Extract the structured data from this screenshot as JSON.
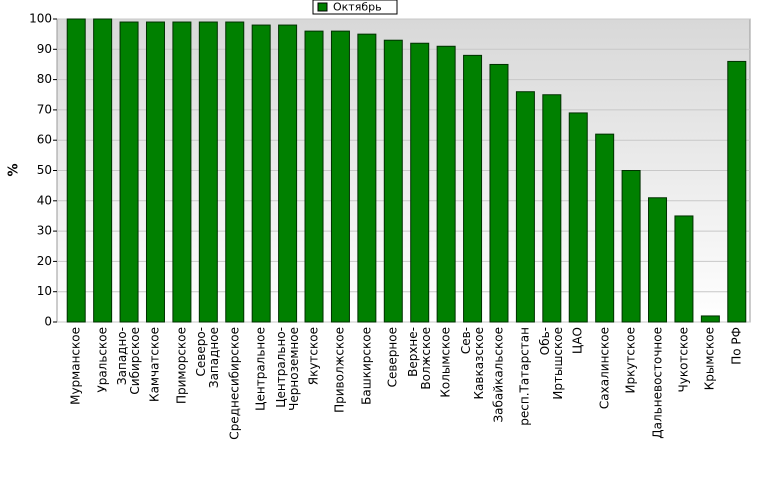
{
  "chart_data": {
    "type": "bar",
    "legend": "Октябрь",
    "ylabel": "%",
    "color": "#008000",
    "categories": [
      "Мурманское",
      "Уральское",
      "Западно-\nСибирское",
      "Камчатское",
      "Приморское",
      "Северо-\nЗападное",
      "Среднесибирское",
      "Центральное",
      "Центрально-\nЧерноземное",
      "Якутское",
      "Приволжское",
      "Башкирское",
      "Северное",
      "Верхне-\nВолжское",
      "Колымское",
      "Сев-\nКавказское",
      "Забайкальское",
      "респ.Татарстан",
      "Обь-\nИртышское",
      "ЦАО",
      "Сахалинское",
      "Иркутское",
      "Дальневосточное",
      "Чукотское",
      "Крымское",
      "По РФ"
    ],
    "values": [
      100,
      100,
      99,
      99,
      99,
      99,
      99,
      98,
      98,
      96,
      96,
      95,
      93,
      92,
      91,
      88,
      85,
      76,
      75,
      69,
      62,
      50,
      41,
      35,
      2,
      86
    ],
    "ylim": [
      0,
      100
    ],
    "yticks": [
      0,
      10,
      20,
      30,
      40,
      50,
      60,
      70,
      80,
      90,
      100
    ],
    "grid": true
  }
}
